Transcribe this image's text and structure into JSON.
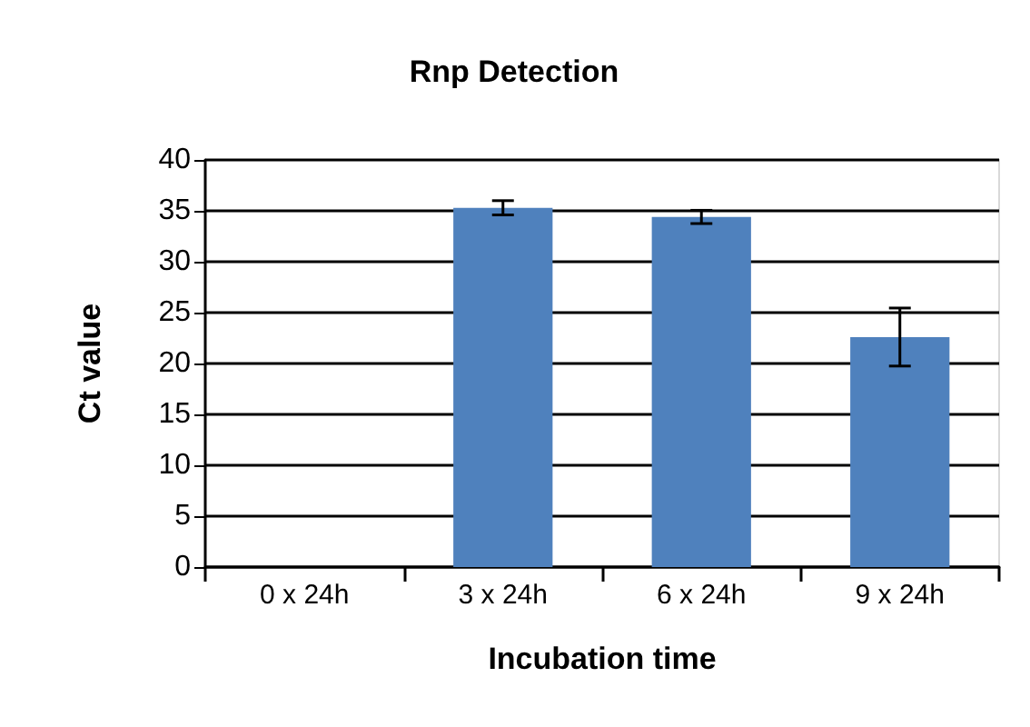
{
  "chart_data": {
    "type": "bar",
    "title": "Rnp Detection",
    "xlabel": "Incubation time",
    "ylabel": "Ct value",
    "categories": [
      "0 x 24h",
      "3 x 24h",
      "6 x 24h",
      "9 x 24h"
    ],
    "values": [
      0,
      35.3,
      34.4,
      22.6
    ],
    "errors": [
      null,
      0.7,
      0.65,
      2.85
    ],
    "color": "#4f81bd",
    "ylim": [
      0,
      40
    ],
    "yticks": [
      0,
      5,
      10,
      15,
      20,
      25,
      30,
      35,
      40
    ],
    "grid": "y"
  }
}
